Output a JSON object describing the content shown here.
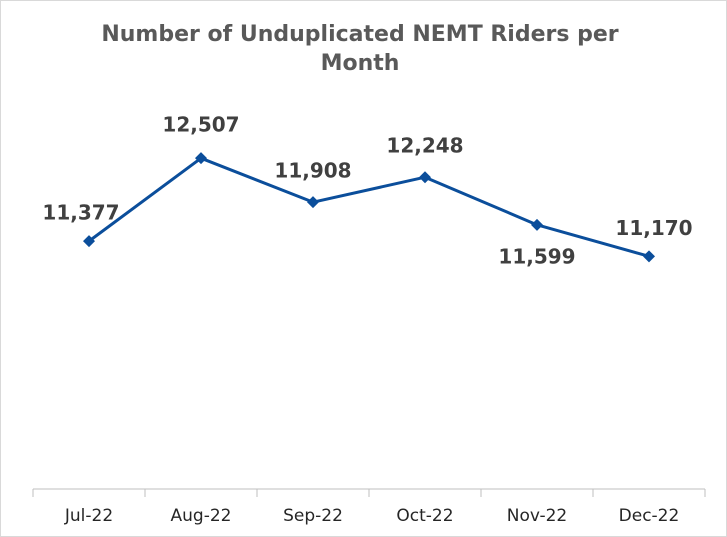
{
  "chart_data": {
    "type": "line",
    "title": "Number of Unduplicated NEMT Riders per Month",
    "categories": [
      "Jul-22",
      "Aug-22",
      "Sep-22",
      "Oct-22",
      "Nov-22",
      "Dec-22"
    ],
    "values": [
      11377,
      12507,
      11908,
      12248,
      11599,
      11170
    ],
    "value_labels": [
      "11,377",
      "12,507",
      "11,908",
      "12,248",
      "11,599",
      "11,170"
    ],
    "color": "#0b4e9b",
    "ylim": [
      8000,
      13000
    ],
    "grid": false
  }
}
